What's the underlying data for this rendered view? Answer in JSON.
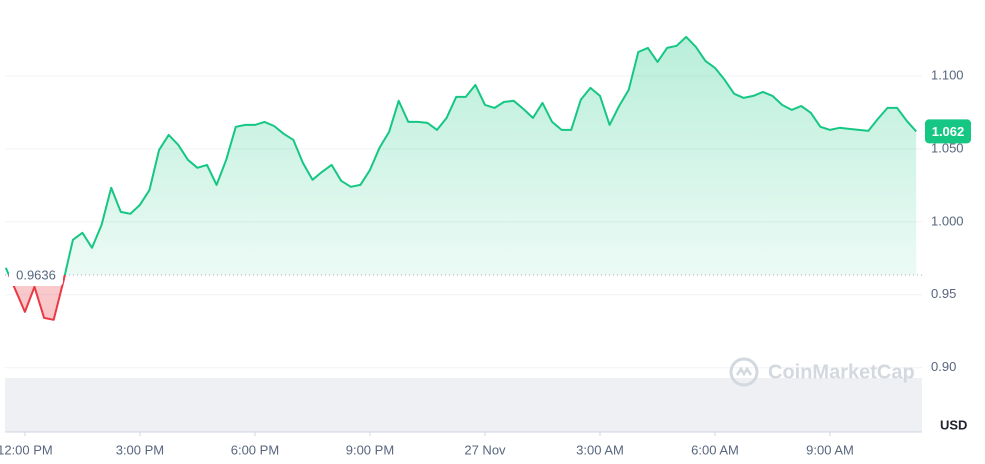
{
  "chart_data": {
    "type": "line",
    "x": [
      -0.5,
      -0.25,
      0,
      0.25,
      0.5,
      0.75,
      1,
      1.25,
      1.5,
      1.75,
      2,
      2.25,
      2.5,
      2.75,
      3,
      3.25,
      3.5,
      3.75,
      4,
      4.25,
      4.5,
      4.75,
      5,
      5.25,
      5.5,
      5.75,
      6,
      6.25,
      6.5,
      6.75,
      7,
      7.25,
      7.5,
      7.75,
      8,
      8.25,
      8.5,
      8.75,
      9,
      9.25,
      9.5,
      9.75,
      10,
      10.25,
      10.5,
      10.75,
      11,
      11.25,
      11.5,
      11.75,
      12,
      12.25,
      12.5,
      12.75,
      13,
      13.25,
      13.5,
      13.75,
      14,
      14.25,
      14.5,
      14.75,
      15,
      15.25,
      15.5,
      15.75,
      16,
      16.25,
      16.5,
      16.75,
      17,
      17.25,
      17.5,
      17.75,
      18,
      18.25,
      18.5,
      18.75,
      19,
      19.25,
      19.5,
      19.75,
      20,
      20.25,
      20.5,
      20.75,
      21,
      21.25,
      21.5,
      21.75,
      22,
      22.25,
      22.5,
      22.75,
      23,
      23.25
    ],
    "values": [
      0.9685,
      0.9534,
      0.9383,
      0.9555,
      0.9342,
      0.9329,
      0.9589,
      0.9877,
      0.9925,
      0.9822,
      0.9979,
      1.0233,
      1.0068,
      1.0055,
      1.0116,
      1.0219,
      1.0493,
      1.0596,
      1.0527,
      1.0425,
      1.037,
      1.039,
      1.0253,
      1.0425,
      1.0651,
      1.0664,
      1.0664,
      1.0685,
      1.0657,
      1.0603,
      1.0562,
      1.0404,
      1.0288,
      1.0342,
      1.039,
      1.0281,
      1.024,
      1.0253,
      1.0356,
      1.0507,
      1.0616,
      1.0829,
      1.0685,
      1.0685,
      1.0678,
      1.063,
      1.0712,
      1.0856,
      1.0856,
      1.0938,
      1.0801,
      1.0781,
      1.0822,
      1.0829,
      1.0774,
      1.0712,
      1.0815,
      1.0685,
      1.063,
      1.063,
      1.0836,
      1.0918,
      1.0863,
      1.0664,
      1.0794,
      1.0904,
      1.1164,
      1.1192,
      1.1096,
      1.1192,
      1.1206,
      1.1267,
      1.1199,
      1.1103,
      1.1055,
      1.0973,
      1.0877,
      1.0849,
      1.0863,
      1.089,
      1.0863,
      1.0801,
      1.0767,
      1.0794,
      1.0747,
      1.0651,
      1.063,
      1.0644,
      1.0637,
      1.063,
      1.0623,
      1.0705,
      1.0781,
      1.0781,
      1.0692,
      1.062
    ],
    "baseline": 0.9636,
    "up_color": "#16c784",
    "down_color": "#ea3943",
    "xlim": [
      -0.52,
      23.4
    ],
    "xticks": [
      {
        "value": 0,
        "label": "12:00 PM"
      },
      {
        "value": 3,
        "label": "3:00 PM"
      },
      {
        "value": 6,
        "label": "6:00 PM"
      },
      {
        "value": 9,
        "label": "9:00 PM"
      },
      {
        "value": 12,
        "label": "27 Nov"
      },
      {
        "value": 15,
        "label": "3:00 AM"
      },
      {
        "value": 18,
        "label": "6:00 AM"
      },
      {
        "value": 21,
        "label": "9:00 AM"
      }
    ],
    "ylim": [
      0.856,
      1.152
    ],
    "yticks": [
      {
        "value": 1.1,
        "label": "1.100"
      },
      {
        "value": 1.05,
        "label": "1.050"
      },
      {
        "value": 1,
        "label": "1.000"
      },
      0.95,
      {
        "value": 0.9,
        "label": "0.90"
      }
    ],
    "y_unit": "USD",
    "watermark": "CoinMarketCap",
    "grid": true
  }
}
